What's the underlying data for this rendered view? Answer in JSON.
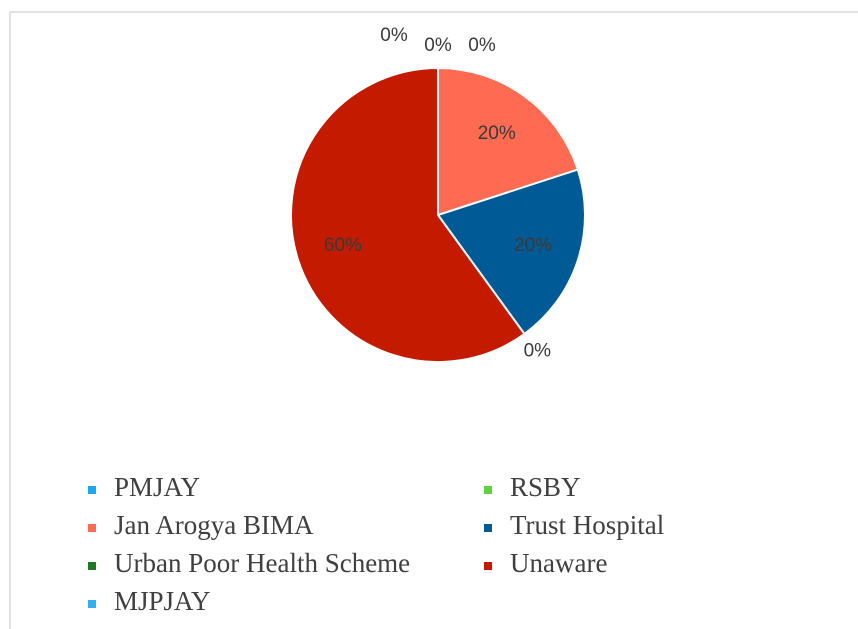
{
  "chart_data": {
    "type": "pie",
    "categories": [
      "PMJAY",
      "RSBY",
      "Jan Arogya BIMA",
      "Trust Hospital",
      "Urban Poor Health Scheme",
      "Unaware",
      "MJPJAY"
    ],
    "values": [
      0,
      0,
      20,
      20,
      0,
      60,
      0
    ],
    "value_labels": [
      "0%",
      "0%",
      "20%",
      "20%",
      "0%",
      "60%",
      "0%"
    ],
    "colors": [
      "#1ea7f0",
      "#5fd33a",
      "#ff6a52",
      "#005a96",
      "#1f7a1f",
      "#c41a00",
      "#33aef0"
    ],
    "legend": "bottom"
  }
}
